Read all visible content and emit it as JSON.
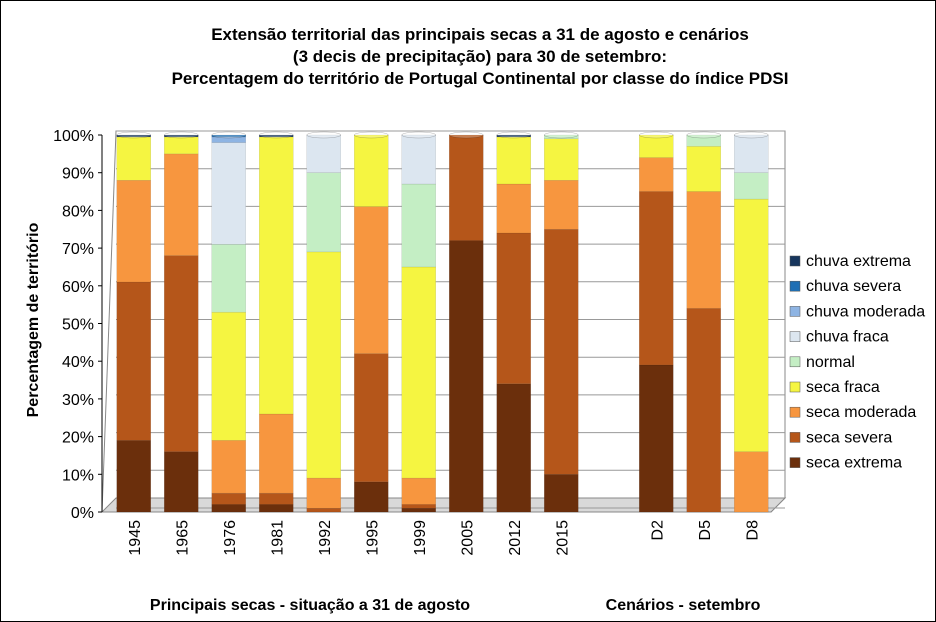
{
  "chart_data": {
    "type": "bar",
    "stacked": true,
    "title": "Extensão territorial das principais secas a 31 de agosto e cenários",
    "subtitle": "(3 decis de precipitação) para 30 de setembro:",
    "subtitle2": "Percentagem do território de Portugal Continental por classe do índice PDSI",
    "y_label": "Percentagem  de território",
    "group_labels": [
      "Principais secas  - situação  a 31 de agosto",
      "Cenários  - setembro"
    ],
    "categories": [
      "1945",
      "1965",
      "1976",
      "1981",
      "1992",
      "1995",
      "1999",
      "2005",
      "2012",
      "2015",
      null,
      "D2",
      "D5",
      "D8"
    ],
    "ylim": [
      0,
      100
    ],
    "yticks": [
      {
        "value": 0,
        "label": "0%"
      },
      {
        "value": 10,
        "label": "10%"
      },
      {
        "value": 20,
        "label": "20%"
      },
      {
        "value": 30,
        "label": "30%"
      },
      {
        "value": 40,
        "label": "40%"
      },
      {
        "value": 50,
        "label": "50%"
      },
      {
        "value": 60,
        "label": "60%"
      },
      {
        "value": 70,
        "label": "70%"
      },
      {
        "value": 80,
        "label": "80%"
      },
      {
        "value": 90,
        "label": "90%"
      },
      {
        "value": 100,
        "label": "100%"
      }
    ],
    "grid": true,
    "legend_position": "right",
    "series": [
      {
        "name": "seca extrema",
        "color": "#6b2f0c",
        "values": [
          19,
          16,
          2,
          2,
          0,
          8,
          1,
          72,
          34,
          10,
          null,
          39,
          0,
          0
        ]
      },
      {
        "name": "seca severa",
        "color": "#b5561a",
        "values": [
          42,
          52,
          3,
          3,
          1,
          34,
          1,
          28,
          40,
          65,
          null,
          46,
          54,
          0
        ]
      },
      {
        "name": "seca moderada",
        "color": "#f7963f",
        "values": [
          27,
          27,
          14,
          21,
          8,
          39,
          7,
          0,
          13,
          13,
          null,
          9,
          31,
          16
        ]
      },
      {
        "name": "seca fraca",
        "color": "#f5f541",
        "values": [
          11.5,
          4.5,
          34,
          73.5,
          60,
          19,
          56,
          0,
          12.5,
          11,
          null,
          6,
          12,
          67
        ]
      },
      {
        "name": "normal",
        "color": "#c4eec4",
        "values": [
          0,
          0,
          18,
          0,
          21,
          0,
          22,
          0,
          0,
          1,
          null,
          0,
          3,
          7
        ]
      },
      {
        "name": "chuva fraca",
        "color": "#dce6f0",
        "values": [
          0,
          0,
          27,
          0,
          10,
          0,
          13,
          0,
          0,
          0,
          null,
          0,
          0,
          10
        ]
      },
      {
        "name": "chuva moderada",
        "color": "#8eb4e3",
        "values": [
          0,
          0,
          1.5,
          0,
          0,
          0,
          0,
          0,
          0,
          0,
          null,
          0,
          0,
          0
        ]
      },
      {
        "name": "chuva severa",
        "color": "#1f6fb4",
        "values": [
          0,
          0,
          0.5,
          0,
          0,
          0,
          0,
          0,
          0,
          0,
          null,
          0,
          0,
          0
        ]
      },
      {
        "name": "chuva extrema",
        "color": "#17365d",
        "values": [
          0.5,
          0.5,
          0,
          0.5,
          0,
          0,
          0,
          0,
          0.5,
          0,
          null,
          0,
          0,
          0
        ]
      }
    ]
  }
}
